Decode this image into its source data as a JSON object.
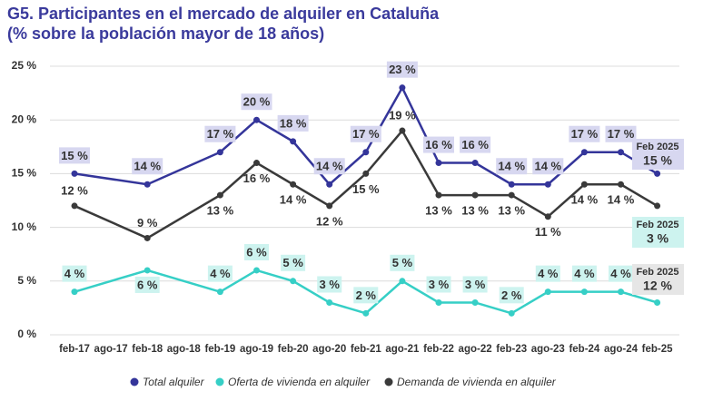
{
  "chart_data": {
    "type": "line",
    "title": "G5. Participantes en el mercado de alquiler en Cataluña",
    "subtitle": "(% sobre la población mayor de 18 años)",
    "categories": [
      "feb-17",
      "ago-17",
      "feb-18",
      "ago-18",
      "feb-19",
      "ago-19",
      "feb-20",
      "ago-20",
      "feb-21",
      "ago-21",
      "feb-22",
      "ago-22",
      "feb-23",
      "ago-23",
      "feb-24",
      "ago-24",
      "feb-25"
    ],
    "ylim": [
      0,
      25
    ],
    "yticks": [
      {
        "value": 0,
        "label": "0 %"
      },
      {
        "value": 5,
        "label": "5 %"
      },
      {
        "value": 10,
        "label": "10 %"
      },
      {
        "value": 15,
        "label": "15 %"
      },
      {
        "value": 20,
        "label": "20 %"
      },
      {
        "value": 25,
        "label": "25 %"
      }
    ],
    "grid": true,
    "series": [
      {
        "name": "Total alquiler",
        "color": "#34359a",
        "label_bg": "#d7d7f0",
        "values": [
          15,
          null,
          14,
          null,
          17,
          20,
          18,
          14,
          17,
          23,
          16,
          16,
          14,
          14,
          17,
          17,
          15
        ],
        "value_labels": [
          "15 %",
          null,
          "14 %",
          null,
          "17 %",
          "20 %",
          "18 %",
          "14 %",
          "17 %",
          "23 %",
          "16 %",
          "16 %",
          "14 %",
          "14 %",
          "17 %",
          "17 %",
          "15 %"
        ],
        "end_label": "Feb 2025"
      },
      {
        "name": "Oferta de vivienda en alquiler",
        "color": "#36cfc6",
        "label_bg": "#cdf3ef",
        "values": [
          4,
          null,
          6,
          null,
          4,
          6,
          5,
          3,
          2,
          5,
          3,
          3,
          2,
          4,
          4,
          4,
          3
        ],
        "value_labels": [
          "4 %",
          null,
          "6 %",
          null,
          "4 %",
          "6 %",
          "5 %",
          "3 %",
          "2 %",
          "5 %",
          "3 %",
          "3 %",
          "2 %",
          "4 %",
          "4 %",
          "4 %",
          "3 %"
        ],
        "end_label": "Feb 2025"
      },
      {
        "name": "Demanda de vivienda en alquiler",
        "color": "#3a3a3a",
        "label_bg": "#e6e6e6",
        "values": [
          12,
          null,
          9,
          null,
          13,
          16,
          14,
          12,
          15,
          19,
          13,
          13,
          13,
          11,
          14,
          14,
          12
        ],
        "value_labels": [
          "12 %",
          null,
          "9 %",
          null,
          "13 %",
          "16 %",
          "14 %",
          "12 %",
          "15 %",
          "19 %",
          "13 %",
          "13 %",
          "13 %",
          "11 %",
          "14 %",
          "14 %",
          "12 %"
        ],
        "end_label": "Feb 2025"
      }
    ]
  }
}
